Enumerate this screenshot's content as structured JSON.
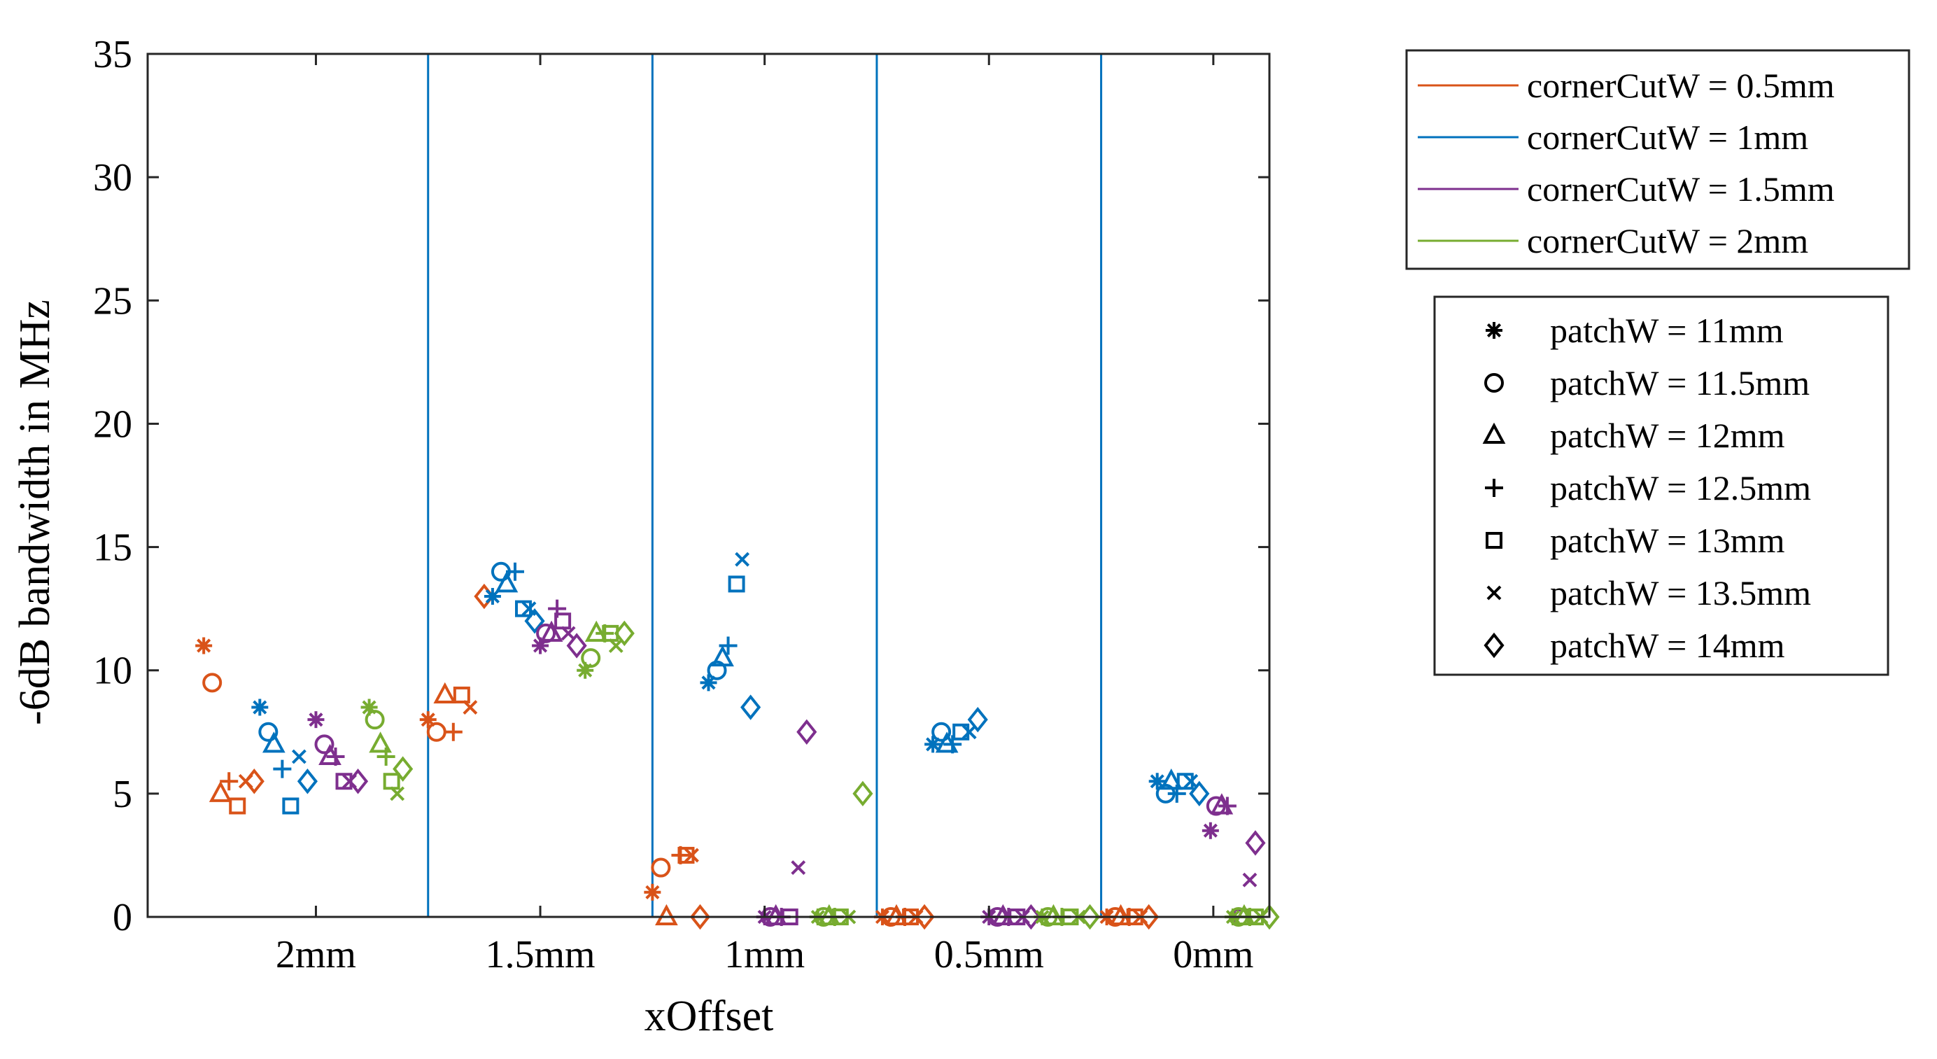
{
  "chart_data": {
    "type": "scatter",
    "xlabel": "xOffset",
    "ylabel": "-6dB bandwidth in MHz",
    "ylim": [
      0,
      35
    ],
    "yticks": [
      0,
      5,
      10,
      15,
      20,
      25,
      30,
      35
    ],
    "xlim": [
      -1,
      19
    ],
    "groups": [
      {
        "label": "2mm",
        "position": 2
      },
      {
        "label": "1.5mm",
        "position": 6
      },
      {
        "label": "1mm",
        "position": 10
      },
      {
        "label": "0.5mm",
        "position": 14
      },
      {
        "label": "0mm",
        "position": 18
      }
    ],
    "separators": [
      4,
      8,
      12,
      16
    ],
    "color_legend": [
      {
        "name": "cornerCutW = 0.5mm",
        "color": "#D95319"
      },
      {
        "name": "cornerCutW = 1mm",
        "color": "#0072BD"
      },
      {
        "name": "cornerCutW = 1.5mm",
        "color": "#7E2F8E"
      },
      {
        "name": "cornerCutW = 2mm",
        "color": "#77AC30"
      }
    ],
    "marker_legend": [
      {
        "name": "patchW = 11mm",
        "marker": "asterisk"
      },
      {
        "name": "patchW = 11.5mm",
        "marker": "circle"
      },
      {
        "name": "patchW = 12mm",
        "marker": "triangle"
      },
      {
        "name": "patchW = 12.5mm",
        "marker": "plus"
      },
      {
        "name": "patchW = 13mm",
        "marker": "square"
      },
      {
        "name": "patchW = 13.5mm",
        "marker": "cross"
      },
      {
        "name": "patchW = 14mm",
        "marker": "diamond"
      }
    ],
    "series": [
      {
        "name": "cornerCutW = 0.5mm",
        "color": "#D95319",
        "points": [
          {
            "x": 0.0,
            "y": 11.0,
            "m": "asterisk"
          },
          {
            "x": 0.15,
            "y": 9.5,
            "m": "circle"
          },
          {
            "x": 0.3,
            "y": 5.0,
            "m": "triangle"
          },
          {
            "x": 0.45,
            "y": 5.5,
            "m": "plus"
          },
          {
            "x": 0.6,
            "y": 4.5,
            "m": "square"
          },
          {
            "x": 0.75,
            "y": 5.5,
            "m": "cross"
          },
          {
            "x": 0.9,
            "y": 5.5,
            "m": "diamond"
          },
          {
            "x": 4.0,
            "y": 8.0,
            "m": "asterisk"
          },
          {
            "x": 4.15,
            "y": 7.5,
            "m": "circle"
          },
          {
            "x": 4.3,
            "y": 9.0,
            "m": "triangle"
          },
          {
            "x": 4.45,
            "y": 7.5,
            "m": "plus"
          },
          {
            "x": 4.6,
            "y": 9.0,
            "m": "square"
          },
          {
            "x": 4.75,
            "y": 8.5,
            "m": "cross"
          },
          {
            "x": 5.0,
            "y": 13.0,
            "m": "diamond"
          },
          {
            "x": 8.0,
            "y": 1.0,
            "m": "asterisk"
          },
          {
            "x": 8.15,
            "y": 2.0,
            "m": "circle"
          },
          {
            "x": 8.25,
            "y": 0.0,
            "m": "triangle"
          },
          {
            "x": 8.5,
            "y": 2.5,
            "m": "plus"
          },
          {
            "x": 8.6,
            "y": 2.5,
            "m": "square"
          },
          {
            "x": 8.7,
            "y": 2.5,
            "m": "cross"
          },
          {
            "x": 8.85,
            "y": 0.0,
            "m": "diamond"
          },
          {
            "x": 12.1,
            "y": 0.0,
            "m": "asterisk"
          },
          {
            "x": 12.25,
            "y": 0.0,
            "m": "circle"
          },
          {
            "x": 12.35,
            "y": 0.0,
            "m": "triangle"
          },
          {
            "x": 12.5,
            "y": 0.0,
            "m": "plus"
          },
          {
            "x": 12.6,
            "y": 0.0,
            "m": "square"
          },
          {
            "x": 12.7,
            "y": 0.0,
            "m": "cross"
          },
          {
            "x": 12.85,
            "y": 0.0,
            "m": "diamond"
          },
          {
            "x": 16.1,
            "y": 0.0,
            "m": "asterisk"
          },
          {
            "x": 16.25,
            "y": 0.0,
            "m": "circle"
          },
          {
            "x": 16.35,
            "y": 0.0,
            "m": "triangle"
          },
          {
            "x": 16.5,
            "y": 0.0,
            "m": "plus"
          },
          {
            "x": 16.6,
            "y": 0.0,
            "m": "square"
          },
          {
            "x": 16.7,
            "y": 0.0,
            "m": "cross"
          },
          {
            "x": 16.85,
            "y": 0.0,
            "m": "diamond"
          }
        ]
      },
      {
        "name": "cornerCutW = 1mm",
        "color": "#0072BD",
        "points": [
          {
            "x": 1.0,
            "y": 8.5,
            "m": "asterisk"
          },
          {
            "x": 1.15,
            "y": 7.5,
            "m": "circle"
          },
          {
            "x": 1.25,
            "y": 7.0,
            "m": "triangle"
          },
          {
            "x": 1.4,
            "y": 6.0,
            "m": "plus"
          },
          {
            "x": 1.55,
            "y": 4.5,
            "m": "square"
          },
          {
            "x": 1.7,
            "y": 6.5,
            "m": "cross"
          },
          {
            "x": 1.85,
            "y": 5.5,
            "m": "diamond"
          },
          {
            "x": 5.15,
            "y": 13.0,
            "m": "asterisk"
          },
          {
            "x": 5.3,
            "y": 14.0,
            "m": "circle"
          },
          {
            "x": 5.4,
            "y": 13.5,
            "m": "triangle"
          },
          {
            "x": 5.55,
            "y": 14.0,
            "m": "plus"
          },
          {
            "x": 5.7,
            "y": 12.5,
            "m": "square"
          },
          {
            "x": 5.8,
            "y": 12.5,
            "m": "cross"
          },
          {
            "x": 5.9,
            "y": 12.0,
            "m": "diamond"
          },
          {
            "x": 9.0,
            "y": 9.5,
            "m": "asterisk"
          },
          {
            "x": 9.15,
            "y": 10.0,
            "m": "circle"
          },
          {
            "x": 9.25,
            "y": 10.5,
            "m": "triangle"
          },
          {
            "x": 9.35,
            "y": 11.0,
            "m": "plus"
          },
          {
            "x": 9.5,
            "y": 13.5,
            "m": "square"
          },
          {
            "x": 9.6,
            "y": 14.5,
            "m": "cross"
          },
          {
            "x": 9.75,
            "y": 8.5,
            "m": "diamond"
          },
          {
            "x": 13.0,
            "y": 7.0,
            "m": "asterisk"
          },
          {
            "x": 13.15,
            "y": 7.5,
            "m": "circle"
          },
          {
            "x": 13.25,
            "y": 7.0,
            "m": "triangle"
          },
          {
            "x": 13.35,
            "y": 7.0,
            "m": "plus"
          },
          {
            "x": 13.5,
            "y": 7.5,
            "m": "square"
          },
          {
            "x": 13.65,
            "y": 7.5,
            "m": "cross"
          },
          {
            "x": 13.8,
            "y": 8.0,
            "m": "diamond"
          },
          {
            "x": 17.0,
            "y": 5.5,
            "m": "asterisk"
          },
          {
            "x": 17.15,
            "y": 5.0,
            "m": "circle"
          },
          {
            "x": 17.25,
            "y": 5.5,
            "m": "triangle"
          },
          {
            "x": 17.35,
            "y": 5.0,
            "m": "plus"
          },
          {
            "x": 17.5,
            "y": 5.5,
            "m": "square"
          },
          {
            "x": 17.6,
            "y": 5.5,
            "m": "cross"
          },
          {
            "x": 17.75,
            "y": 5.0,
            "m": "diamond"
          }
        ]
      },
      {
        "name": "cornerCutW = 1.5mm",
        "color": "#7E2F8E",
        "points": [
          {
            "x": 2.0,
            "y": 8.0,
            "m": "asterisk"
          },
          {
            "x": 2.15,
            "y": 7.0,
            "m": "circle"
          },
          {
            "x": 2.25,
            "y": 6.5,
            "m": "triangle"
          },
          {
            "x": 2.35,
            "y": 6.5,
            "m": "plus"
          },
          {
            "x": 2.5,
            "y": 5.5,
            "m": "square"
          },
          {
            "x": 2.6,
            "y": 5.5,
            "m": "cross"
          },
          {
            "x": 2.75,
            "y": 5.5,
            "m": "diamond"
          },
          {
            "x": 6.0,
            "y": 11.0,
            "m": "asterisk"
          },
          {
            "x": 6.1,
            "y": 11.5,
            "m": "circle"
          },
          {
            "x": 6.2,
            "y": 11.5,
            "m": "triangle"
          },
          {
            "x": 6.3,
            "y": 12.5,
            "m": "plus"
          },
          {
            "x": 6.4,
            "y": 12.0,
            "m": "square"
          },
          {
            "x": 6.5,
            "y": 11.5,
            "m": "cross"
          },
          {
            "x": 6.65,
            "y": 11.0,
            "m": "diamond"
          },
          {
            "x": 10.0,
            "y": 0.0,
            "m": "asterisk"
          },
          {
            "x": 10.1,
            "y": 0.0,
            "m": "circle"
          },
          {
            "x": 10.2,
            "y": 0.0,
            "m": "triangle"
          },
          {
            "x": 10.3,
            "y": 0.0,
            "m": "plus"
          },
          {
            "x": 10.45,
            "y": 0.0,
            "m": "square"
          },
          {
            "x": 10.6,
            "y": 2.0,
            "m": "cross"
          },
          {
            "x": 10.75,
            "y": 7.5,
            "m": "diamond"
          },
          {
            "x": 14.0,
            "y": 0.0,
            "m": "asterisk"
          },
          {
            "x": 14.15,
            "y": 0.0,
            "m": "circle"
          },
          {
            "x": 14.25,
            "y": 0.0,
            "m": "triangle"
          },
          {
            "x": 14.35,
            "y": 0.0,
            "m": "plus"
          },
          {
            "x": 14.5,
            "y": 0.0,
            "m": "square"
          },
          {
            "x": 14.6,
            "y": 0.0,
            "m": "cross"
          },
          {
            "x": 14.75,
            "y": 0.0,
            "m": "diamond"
          },
          {
            "x": 17.95,
            "y": 3.5,
            "m": "asterisk"
          },
          {
            "x": 18.05,
            "y": 4.5,
            "m": "circle"
          },
          {
            "x": 18.15,
            "y": 4.5,
            "m": "triangle"
          },
          {
            "x": 18.25,
            "y": 4.5,
            "m": "plus"
          },
          {
            "x": 18.5,
            "y": 0.0,
            "m": "square"
          },
          {
            "x": 18.65,
            "y": 1.5,
            "m": "cross"
          },
          {
            "x": 18.75,
            "y": 3.0,
            "m": "diamond"
          }
        ]
      },
      {
        "name": "cornerCutW = 2mm",
        "color": "#77AC30",
        "points": [
          {
            "x": 2.95,
            "y": 8.5,
            "m": "asterisk"
          },
          {
            "x": 3.05,
            "y": 8.0,
            "m": "circle"
          },
          {
            "x": 3.15,
            "y": 7.0,
            "m": "triangle"
          },
          {
            "x": 3.25,
            "y": 6.5,
            "m": "plus"
          },
          {
            "x": 3.35,
            "y": 5.5,
            "m": "square"
          },
          {
            "x": 3.45,
            "y": 5.0,
            "m": "cross"
          },
          {
            "x": 3.55,
            "y": 6.0,
            "m": "diamond"
          },
          {
            "x": 6.8,
            "y": 10.0,
            "m": "asterisk"
          },
          {
            "x": 6.9,
            "y": 10.5,
            "m": "circle"
          },
          {
            "x": 7.0,
            "y": 11.5,
            "m": "triangle"
          },
          {
            "x": 7.15,
            "y": 11.5,
            "m": "plus"
          },
          {
            "x": 7.25,
            "y": 11.5,
            "m": "square"
          },
          {
            "x": 7.35,
            "y": 11.0,
            "m": "cross"
          },
          {
            "x": 7.5,
            "y": 11.5,
            "m": "diamond"
          },
          {
            "x": 10.95,
            "y": 0.0,
            "m": "asterisk"
          },
          {
            "x": 11.05,
            "y": 0.0,
            "m": "circle"
          },
          {
            "x": 11.15,
            "y": 0.0,
            "m": "triangle"
          },
          {
            "x": 11.25,
            "y": 0.0,
            "m": "plus"
          },
          {
            "x": 11.35,
            "y": 0.0,
            "m": "square"
          },
          {
            "x": 11.5,
            "y": 0.0,
            "m": "cross"
          },
          {
            "x": 11.75,
            "y": 5.0,
            "m": "diamond"
          },
          {
            "x": 14.95,
            "y": 0.0,
            "m": "asterisk"
          },
          {
            "x": 15.05,
            "y": 0.0,
            "m": "circle"
          },
          {
            "x": 15.15,
            "y": 0.0,
            "m": "triangle"
          },
          {
            "x": 15.3,
            "y": 0.0,
            "m": "plus"
          },
          {
            "x": 15.45,
            "y": 0.0,
            "m": "square"
          },
          {
            "x": 15.6,
            "y": 0.0,
            "m": "cross"
          },
          {
            "x": 15.8,
            "y": 0.0,
            "m": "diamond"
          },
          {
            "x": 18.35,
            "y": 0.0,
            "m": "asterisk"
          },
          {
            "x": 18.45,
            "y": 0.0,
            "m": "circle"
          },
          {
            "x": 18.55,
            "y": 0.0,
            "m": "triangle"
          },
          {
            "x": 18.65,
            "y": 0.0,
            "m": "plus"
          },
          {
            "x": 18.75,
            "y": 0.0,
            "m": "square"
          },
          {
            "x": 18.85,
            "y": 0.0,
            "m": "cross"
          },
          {
            "x": 19.0,
            "y": 0.0,
            "m": "diamond"
          }
        ]
      }
    ]
  }
}
